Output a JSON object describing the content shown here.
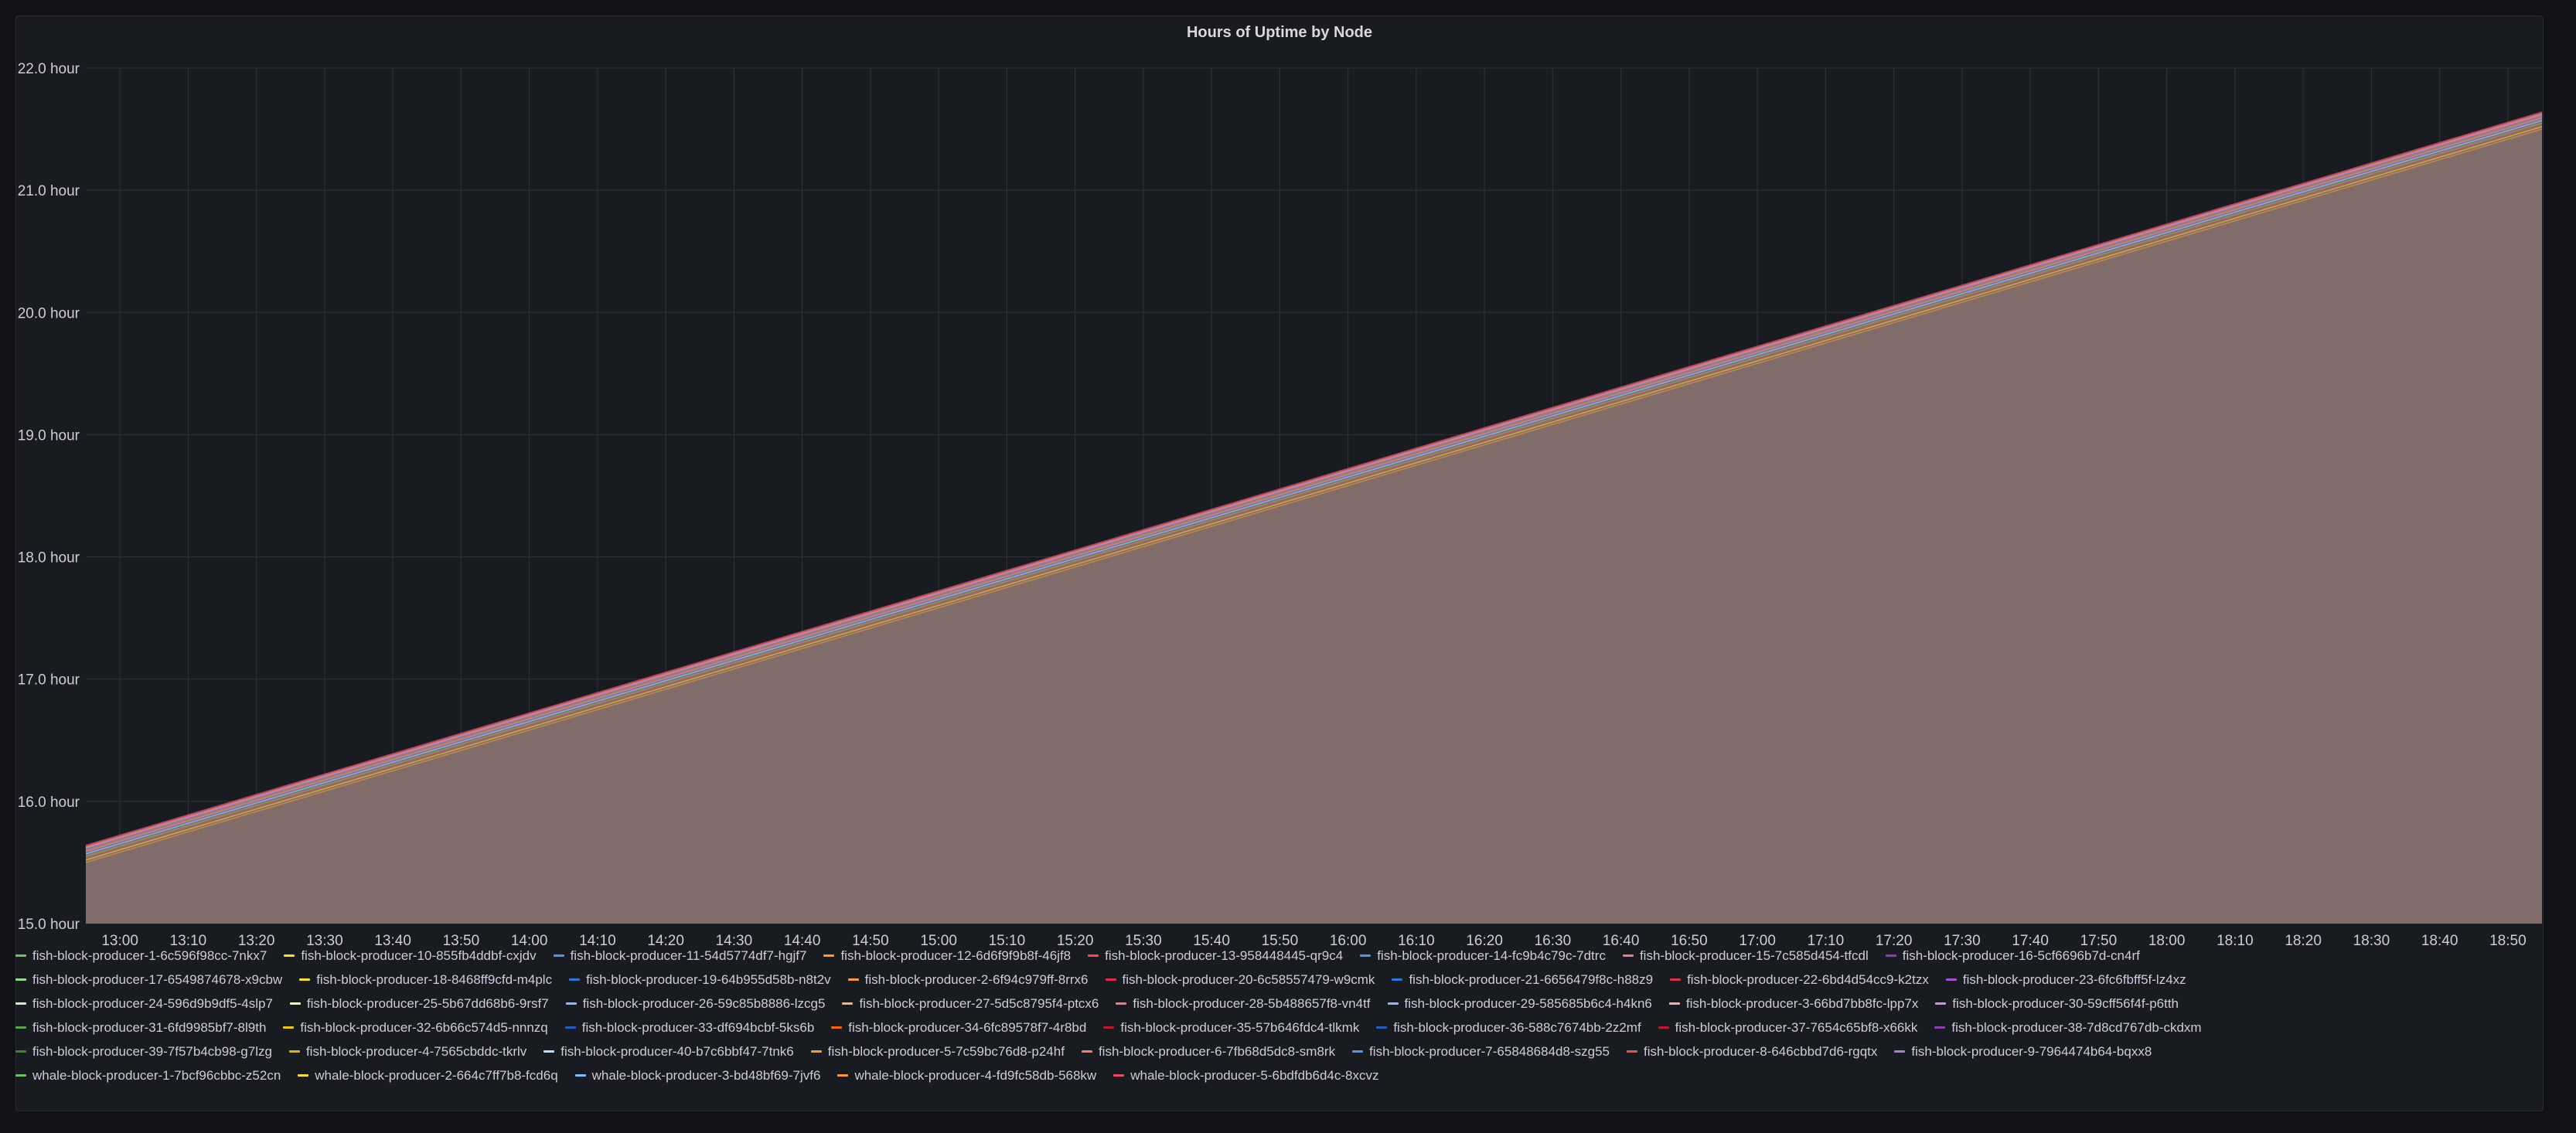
{
  "chart_data": {
    "type": "area",
    "title": "Hours of Uptime by Node",
    "xlabel": "",
    "ylabel": "",
    "y_unit": "hour",
    "ylim": [
      15.0,
      22.0
    ],
    "y_ticks": [
      "15.0 hour",
      "16.0 hour",
      "17.0 hour",
      "18.0 hour",
      "19.0 hour",
      "20.0 hour",
      "21.0 hour",
      "22.0 hour"
    ],
    "x_ticks": [
      "13:00",
      "13:10",
      "13:20",
      "13:30",
      "13:40",
      "13:50",
      "14:00",
      "14:10",
      "14:20",
      "14:30",
      "14:40",
      "14:50",
      "15:00",
      "15:10",
      "15:20",
      "15:30",
      "15:40",
      "15:50",
      "16:00",
      "16:10",
      "16:20",
      "16:30",
      "16:40",
      "16:50",
      "17:00",
      "17:10",
      "17:20",
      "17:30",
      "17:40",
      "17:50",
      "18:00",
      "18:10",
      "18:20",
      "18:30",
      "18:40",
      "18:50"
    ],
    "x_range": [
      "12:55",
      "18:55"
    ],
    "grid": true,
    "legend_position": "bottom",
    "series_start": 15.6,
    "series_end": 21.6,
    "fill_color": "#84706a",
    "series": [
      {
        "name": "fish-block-producer-1-6c596f98cc-7nkx7",
        "color": "#73bf69",
        "x": [
          "12:55",
          "18:55"
        ],
        "values": [
          15.6,
          21.6
        ]
      },
      {
        "name": "fish-block-producer-10-855fb4ddbf-cxjdv",
        "color": "#fade2a",
        "x": [
          "12:55",
          "18:55"
        ],
        "values": [
          15.62,
          21.62
        ]
      },
      {
        "name": "fish-block-producer-11-54d5774df7-hgjf7",
        "color": "#5794f2",
        "x": [
          "12:55",
          "18:55"
        ],
        "values": [
          15.58,
          21.58
        ]
      },
      {
        "name": "fish-block-producer-12-6d6f9f9b8f-46jf8",
        "color": "#ff9830",
        "x": [
          "12:55",
          "18:55"
        ],
        "values": [
          15.61,
          21.61
        ]
      },
      {
        "name": "fish-block-producer-13-958448445-qr9c4",
        "color": "#f2495c",
        "x": [
          "12:55",
          "18:55"
        ],
        "values": [
          15.63,
          21.63
        ]
      },
      {
        "name": "fish-block-producer-14-fc9b4c79c-7dtrc",
        "color": "#5794f2",
        "x": [
          "12:55",
          "18:55"
        ],
        "values": [
          15.59,
          21.59
        ]
      },
      {
        "name": "fish-block-producer-15-7c585d454-tfcdl",
        "color": "#ff7383",
        "x": [
          "12:55",
          "18:55"
        ],
        "values": [
          15.64,
          21.64
        ]
      },
      {
        "name": "fish-block-producer-16-5cf6696b7d-cn4rf",
        "color": "#8f3bb8",
        "x": [
          "12:55",
          "18:55"
        ],
        "values": [
          15.6,
          21.6
        ]
      },
      {
        "name": "fish-block-producer-17-6549874678-x9cbw",
        "color": "#96d98d",
        "x": [
          "12:55",
          "18:55"
        ],
        "values": [
          15.57,
          21.57
        ]
      },
      {
        "name": "fish-block-producer-18-8468ff9cfd-m4plc",
        "color": "#fade2a",
        "x": [
          "12:55",
          "18:55"
        ],
        "values": [
          15.62,
          21.62
        ]
      },
      {
        "name": "fish-block-producer-19-64b955d58b-n8t2v",
        "color": "#3274d9",
        "x": [
          "12:55",
          "18:55"
        ],
        "values": [
          15.61,
          21.61
        ]
      },
      {
        "name": "fish-block-producer-2-6f94c979ff-8rrx6",
        "color": "#ff9830",
        "x": [
          "12:55",
          "18:55"
        ],
        "values": [
          15.6,
          21.6
        ]
      },
      {
        "name": "fish-block-producer-20-6c58557479-w9cmk",
        "color": "#e02f44",
        "x": [
          "12:55",
          "18:55"
        ],
        "values": [
          15.63,
          21.63
        ]
      },
      {
        "name": "fish-block-producer-21-6656479f8c-h88z9",
        "color": "#3274d9",
        "x": [
          "12:55",
          "18:55"
        ],
        "values": [
          15.58,
          21.58
        ]
      },
      {
        "name": "fish-block-producer-22-6bd4d54cc9-k2tzx",
        "color": "#e02f44",
        "x": [
          "12:55",
          "18:55"
        ],
        "values": [
          15.61,
          21.61
        ]
      },
      {
        "name": "fish-block-producer-23-6fc6fbff5f-lz4xz",
        "color": "#a352cc",
        "x": [
          "12:55",
          "18:55"
        ],
        "values": [
          15.62,
          21.62
        ]
      },
      {
        "name": "fish-block-producer-24-596d9b9df5-4slp7",
        "color": "#c8f2c2",
        "x": [
          "12:55",
          "18:55"
        ],
        "values": [
          15.59,
          21.59
        ]
      },
      {
        "name": "fish-block-producer-25-5b67dd68b6-9rsf7",
        "color": "#fff899",
        "x": [
          "12:55",
          "18:55"
        ],
        "values": [
          15.6,
          21.6
        ]
      },
      {
        "name": "fish-block-producer-26-59c85b8886-lzcg5",
        "color": "#8ab8ff",
        "x": [
          "12:55",
          "18:55"
        ],
        "values": [
          15.61,
          21.61
        ]
      },
      {
        "name": "fish-block-producer-27-5d5c8795f4-ptcx6",
        "color": "#ffb357",
        "x": [
          "12:55",
          "18:55"
        ],
        "values": [
          15.63,
          21.63
        ]
      },
      {
        "name": "fish-block-producer-28-5b488657f8-vn4tf",
        "color": "#ff7383",
        "x": [
          "12:55",
          "18:55"
        ],
        "values": [
          15.6,
          21.6
        ]
      },
      {
        "name": "fish-block-producer-29-585685b6c4-h4kn6",
        "color": "#8ab8ff",
        "x": [
          "12:55",
          "18:55"
        ],
        "values": [
          15.58,
          21.58
        ]
      },
      {
        "name": "fish-block-producer-3-66bd7bb8fc-lpp7x",
        "color": "#ffa6b0",
        "x": [
          "12:55",
          "18:55"
        ],
        "values": [
          15.62,
          21.62
        ]
      },
      {
        "name": "fish-block-producer-30-59cff56f4f-p6tth",
        "color": "#ca95e5",
        "x": [
          "12:55",
          "18:55"
        ],
        "values": [
          15.61,
          21.61
        ]
      },
      {
        "name": "fish-block-producer-31-6fd9985bf7-8l9th",
        "color": "#56a64b",
        "x": [
          "12:55",
          "18:55"
        ],
        "values": [
          15.6,
          21.6
        ]
      },
      {
        "name": "fish-block-producer-32-6b66c574d5-nnnzq",
        "color": "#f2cc0c",
        "x": [
          "12:55",
          "18:55"
        ],
        "values": [
          15.62,
          21.62
        ]
      },
      {
        "name": "fish-block-producer-33-df694bcbf-5ks6b",
        "color": "#1f60c4",
        "x": [
          "12:55",
          "18:55"
        ],
        "values": [
          15.59,
          21.59
        ]
      },
      {
        "name": "fish-block-producer-34-6fc89578f7-4r8bd",
        "color": "#fa6400",
        "x": [
          "12:55",
          "18:55"
        ],
        "values": [
          15.61,
          21.61
        ]
      },
      {
        "name": "fish-block-producer-35-57b646fdc4-tlkmk",
        "color": "#c4162a",
        "x": [
          "12:55",
          "18:55"
        ],
        "values": [
          15.63,
          21.63
        ]
      },
      {
        "name": "fish-block-producer-36-588c7674bb-2z2mf",
        "color": "#1f60c4",
        "x": [
          "12:55",
          "18:55"
        ],
        "values": [
          15.6,
          21.6
        ]
      },
      {
        "name": "fish-block-producer-37-7654c65bf8-x66kk",
        "color": "#c4162a",
        "x": [
          "12:55",
          "18:55"
        ],
        "values": [
          15.62,
          21.62
        ]
      },
      {
        "name": "fish-block-producer-38-7d8cd767db-ckdxm",
        "color": "#8f3bb8",
        "x": [
          "12:55",
          "18:55"
        ],
        "values": [
          15.58,
          21.58
        ]
      },
      {
        "name": "fish-block-producer-39-7f57b4cb98-g7lzg",
        "color": "#37872d",
        "x": [
          "12:55",
          "18:55"
        ],
        "values": [
          15.61,
          21.61
        ]
      },
      {
        "name": "fish-block-producer-4-7565cbddc-tkrlv",
        "color": "#e0b400",
        "x": [
          "12:55",
          "18:55"
        ],
        "values": [
          15.6,
          21.6
        ]
      },
      {
        "name": "fish-block-producer-40-b7c6bbf47-7tnk6",
        "color": "#c0d8ff",
        "x": [
          "12:55",
          "18:55"
        ],
        "values": [
          15.62,
          21.62
        ]
      },
      {
        "name": "fish-block-producer-5-7c59bc76d8-p24hf",
        "color": "#ff9830",
        "x": [
          "12:55",
          "18:55"
        ],
        "values": [
          15.59,
          21.59
        ]
      },
      {
        "name": "fish-block-producer-6-7fb68d5dc8-sm8rk",
        "color": "#ff7383",
        "x": [
          "12:55",
          "18:55"
        ],
        "values": [
          15.63,
          21.63
        ]
      },
      {
        "name": "fish-block-producer-7-65848684d8-szg55",
        "color": "#5794f2",
        "x": [
          "12:55",
          "18:55"
        ],
        "values": [
          15.61,
          21.61
        ]
      },
      {
        "name": "fish-block-producer-8-646cbbd7d6-rgqtx",
        "color": "#f2495c",
        "x": [
          "12:55",
          "18:55"
        ],
        "values": [
          15.6,
          21.6
        ]
      },
      {
        "name": "fish-block-producer-9-7964474b64-bqxx8",
        "color": "#b877d9",
        "x": [
          "12:55",
          "18:55"
        ],
        "values": [
          15.62,
          21.62
        ]
      },
      {
        "name": "whale-block-producer-1-7bcf96cbbc-z52cn",
        "color": "#73bf69",
        "x": [
          "12:55",
          "18:55"
        ],
        "values": [
          15.55,
          21.55
        ]
      },
      {
        "name": "whale-block-producer-2-664c7ff7b8-fcd6q",
        "color": "#fade2a",
        "x": [
          "12:55",
          "18:55"
        ],
        "values": [
          15.52,
          21.52
        ]
      },
      {
        "name": "whale-block-producer-3-bd48bf69-7jvf6",
        "color": "#8ab8ff",
        "x": [
          "12:55",
          "18:55"
        ],
        "values": [
          15.57,
          21.57
        ]
      },
      {
        "name": "whale-block-producer-4-fd9fc58db-568kw",
        "color": "#ff9830",
        "x": [
          "12:55",
          "18:55"
        ],
        "values": [
          15.5,
          21.5
        ]
      },
      {
        "name": "whale-block-producer-5-6bdfdb6d4c-8xcvz",
        "color": "#f2495c",
        "x": [
          "12:55",
          "18:55"
        ],
        "values": [
          15.54,
          21.54
        ]
      }
    ]
  }
}
